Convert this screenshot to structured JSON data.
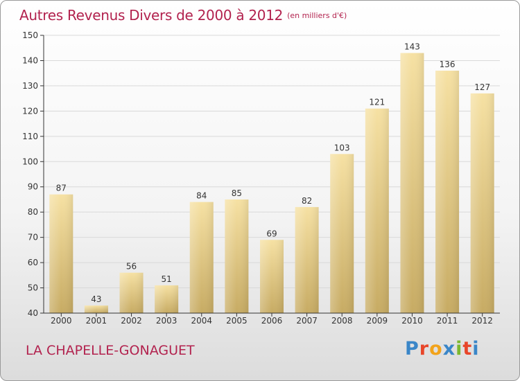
{
  "title": "Autres Revenus Divers de 2000 à 2012",
  "unit_note": "(en milliers d'€)",
  "commune": "LA CHAPELLE-GONAGUET",
  "logo": {
    "letters": [
      "P",
      "r",
      "o",
      "x",
      "i",
      "t",
      "i"
    ],
    "colors": [
      "#3a86c8",
      "#e8462a",
      "#f2a31b",
      "#3a86c8",
      "#7cb82f",
      "#e8462a",
      "#3a86c8"
    ]
  },
  "colors": {
    "title": "#b2224e",
    "bar_top": "#f6e1a3",
    "bar_bottom": "#c7ab63",
    "axis": "#333333",
    "grid": "#d9d9d9"
  },
  "chart_data": {
    "type": "bar",
    "categories": [
      "2000",
      "2001",
      "2002",
      "2003",
      "2004",
      "2005",
      "2006",
      "2007",
      "2008",
      "2009",
      "2010",
      "2011",
      "2012"
    ],
    "values": [
      87,
      43,
      56,
      51,
      84,
      85,
      69,
      82,
      103,
      121,
      143,
      136,
      127
    ],
    "ylim": [
      40,
      150
    ],
    "yticks": [
      40,
      50,
      60,
      70,
      80,
      90,
      100,
      110,
      120,
      130,
      140,
      150
    ],
    "grid": true,
    "xlabel": "",
    "ylabel": ""
  }
}
